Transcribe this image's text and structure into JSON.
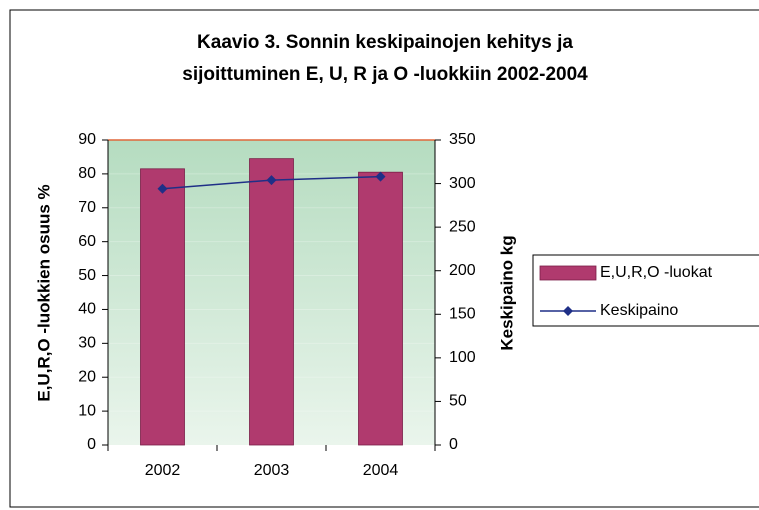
{
  "chart_data": {
    "type": "bar",
    "title": [
      "Kaavio 3. Sonnin keskipainojen kehitys ja",
      "sijoittuminen E, U, R ja O -luokkiin 2002-2004"
    ],
    "y_label": "E,U,R,O -luokkien osuus %",
    "y2_label": "Keskipaino kg",
    "categories": [
      "2002",
      "2003",
      "2004"
    ],
    "series": [
      {
        "name": "E,U,R,O -luokat",
        "type": "bar",
        "color": "#b03a6e",
        "values": [
          81.5,
          84.5,
          80.5
        ]
      },
      {
        "name": "Keskipaino",
        "type": "line",
        "axis": "y2",
        "color": "#1f2f87",
        "values": [
          294,
          304,
          308
        ]
      }
    ],
    "ylim": [
      0,
      90
    ],
    "yticks": [
      0,
      10,
      20,
      30,
      40,
      50,
      60,
      70,
      80,
      90
    ],
    "y2lim": [
      0,
      350
    ],
    "y2ticks": [
      0,
      50,
      100,
      150,
      200,
      250,
      300,
      350
    ],
    "legend": "right"
  }
}
